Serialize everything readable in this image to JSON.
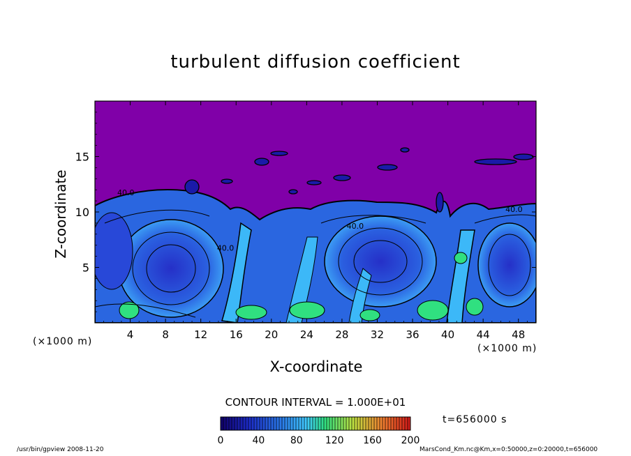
{
  "title": "turbulent diffusion coefficient",
  "footer_left": "/usr/bin/gpview   2008-11-20",
  "footer_right": "MarsCond_Km.nc@Km,x=0:50000,z=0:20000,t=656000",
  "time_label": "t=656000 s",
  "contour_interval": "CONTOUR INTERVAL = 1.000E+01",
  "colors": {
    "background": "#8000a8",
    "low": "#1a1aa8",
    "mid": "#2a6ee0",
    "high": "#40c8ff",
    "accent": "#30e080"
  },
  "chart_data": {
    "type": "heatmap",
    "title": "turbulent diffusion coefficient",
    "xlabel": "X-coordinate",
    "ylabel": "Z-coordinate",
    "x_unit": "(×1000 m)",
    "x_ticks": [
      "4",
      "8",
      "12",
      "16",
      "20",
      "24",
      "28",
      "32",
      "36",
      "40",
      "44",
      "48"
    ],
    "y_ticks": [
      "5",
      "10",
      "15"
    ],
    "xlim": [
      0,
      50
    ],
    "ylim": [
      0,
      20
    ],
    "contour_labels": [
      {
        "text": "40.0",
        "x": 14.8,
        "z": 6.5
      },
      {
        "text": "40.0",
        "x": 29.5,
        "z": 8.5
      },
      {
        "text": "40.0",
        "x": 3.5,
        "z": 11.5
      },
      {
        "text": "40.0",
        "x": 47.5,
        "z": 10.0
      }
    ],
    "colorbar": {
      "ticks": [
        "0",
        "40",
        "80",
        "120",
        "160",
        "200"
      ],
      "range": [
        0,
        200
      ]
    }
  }
}
